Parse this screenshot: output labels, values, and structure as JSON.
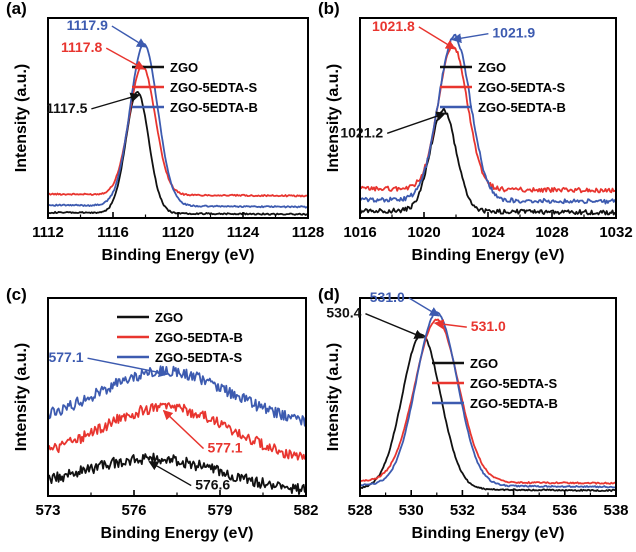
{
  "colors": {
    "ZGO": "#111111",
    "S": "#e8352f",
    "B": "#3d5bb0"
  },
  "chart_data": [
    {
      "type": "line",
      "panel_label": "(a)",
      "xlabel": "Binding Energy (eV)",
      "ylabel": "Intensity (a.u.)",
      "xlim": [
        1112,
        1128
      ],
      "ylim": [
        0,
        1
      ],
      "xticks": [
        "1112",
        "1116",
        "1120",
        "1124",
        "1128"
      ],
      "legend": [
        "ZGO",
        "ZGO-5EDTA-S",
        "ZGO-5EDTA-B"
      ],
      "legend_position": "center-right",
      "series": [
        {
          "name": "ZGO",
          "color_key": "ZGO",
          "peak_x": 1117.5,
          "peak_y": 0.68,
          "baseline": 0.02,
          "width": 0.7,
          "noise": 0.004
        },
        {
          "name": "ZGO-5EDTA-S",
          "color_key": "S",
          "peak_x": 1117.8,
          "peak_y": 0.82,
          "baseline": 0.12,
          "width": 0.8,
          "noise": 0.004
        },
        {
          "name": "ZGO-5EDTA-B",
          "color_key": "B",
          "peak_x": 1117.9,
          "peak_y": 0.94,
          "baseline": 0.06,
          "width": 0.85,
          "noise": 0.004
        }
      ],
      "annotations": [
        {
          "text": "1117.9",
          "color_key": "B",
          "x": 1117.9,
          "y": 0.94
        },
        {
          "text": "1117.8",
          "color_key": "S",
          "x": 1117.8,
          "y": 0.82
        },
        {
          "text": "1117.5",
          "color_key": "ZGO",
          "x": 1117.5,
          "y": 0.68
        }
      ]
    },
    {
      "type": "line",
      "panel_label": "(b)",
      "xlabel": "Binding Energy (eV)",
      "ylabel": "Intensity (a.u.)",
      "xlim": [
        1016,
        1032
      ],
      "ylim": [
        0,
        1
      ],
      "xticks": [
        "1016",
        "1020",
        "1024",
        "1028",
        "1032"
      ],
      "legend": [
        "ZGO",
        "ZGO-5EDTA-S",
        "ZGO-5EDTA-B"
      ],
      "legend_position": "center-right",
      "series": [
        {
          "name": "ZGO",
          "color_key": "ZGO",
          "peak_x": 1021.2,
          "peak_y": 0.58,
          "baseline": 0.03,
          "width": 0.8,
          "noise": 0.012
        },
        {
          "name": "ZGO-5EDTA-S",
          "color_key": "S",
          "peak_x": 1021.8,
          "peak_y": 0.93,
          "baseline": 0.15,
          "width": 0.9,
          "noise": 0.012
        },
        {
          "name": "ZGO-5EDTA-B",
          "color_key": "B",
          "peak_x": 1021.9,
          "peak_y": 0.98,
          "baseline": 0.09,
          "width": 1.0,
          "noise": 0.012
        }
      ],
      "annotations": [
        {
          "text": "1021.9",
          "color_key": "B",
          "x": 1021.9,
          "y": 0.98
        },
        {
          "text": "1021.8",
          "color_key": "S",
          "x": 1021.8,
          "y": 0.93
        },
        {
          "text": "1021.2",
          "color_key": "ZGO",
          "x": 1021.2,
          "y": 0.58
        }
      ]
    },
    {
      "type": "line",
      "panel_label": "(c)",
      "xlabel": "Binding Energy (eV)",
      "ylabel": "Intensity (a.u.)",
      "xlim": [
        573,
        582
      ],
      "ylim": [
        0,
        1
      ],
      "xticks": [
        "573",
        "576",
        "579",
        "582"
      ],
      "legend": [
        "ZGO",
        "ZGO-5EDTA-B",
        "ZGO-5EDTA-S"
      ],
      "legend_position": "top-right",
      "series": [
        {
          "name": "ZGO",
          "color_key": "ZGO",
          "peak_x": 576.6,
          "peak_y": 0.2,
          "baseline": 0.02,
          "width": 2.4,
          "noise": 0.03
        },
        {
          "name": "ZGO-5EDTA-B",
          "color_key": "S",
          "peak_x": 577.1,
          "peak_y": 0.48,
          "baseline": 0.18,
          "width": 2.3,
          "noise": 0.03
        },
        {
          "name": "ZGO-5EDTA-S",
          "color_key": "B",
          "peak_x": 577.1,
          "peak_y": 0.68,
          "baseline": 0.38,
          "width": 2.3,
          "noise": 0.03
        }
      ],
      "annotations": [
        {
          "text": "577.1",
          "color_key": "B",
          "x": 577.1,
          "y": 0.68
        },
        {
          "text": "577.1",
          "color_key": "S",
          "x": 577.1,
          "y": 0.48
        },
        {
          "text": "576.6",
          "color_key": "ZGO",
          "x": 576.6,
          "y": 0.2
        }
      ]
    },
    {
      "type": "line",
      "panel_label": "(d)",
      "xlabel": "Binding Energy (eV)",
      "ylabel": "Intensity (a.u.)",
      "xlim": [
        528,
        538
      ],
      "ylim": [
        0,
        1
      ],
      "xticks": [
        "528",
        "530",
        "532",
        "534",
        "536",
        "538"
      ],
      "legend": [
        "ZGO",
        "ZGO-5EDTA-S",
        "ZGO-5EDTA-B"
      ],
      "legend_position": "center-right",
      "series": [
        {
          "name": "ZGO",
          "color_key": "ZGO",
          "peak_x": 530.4,
          "peak_y": 0.88,
          "baseline": 0.03,
          "width": 0.75,
          "noise": 0.004
        },
        {
          "name": "ZGO-5EDTA-S",
          "color_key": "S",
          "peak_x": 531.0,
          "peak_y": 0.96,
          "baseline": 0.07,
          "width": 0.85,
          "noise": 0.004
        },
        {
          "name": "ZGO-5EDTA-B",
          "color_key": "B",
          "peak_x": 531.0,
          "peak_y": 1.0,
          "baseline": 0.05,
          "width": 0.8,
          "noise": 0.004
        }
      ],
      "annotations": [
        {
          "text": "531.0",
          "color_key": "B",
          "x": 531.0,
          "y": 1.0
        },
        {
          "text": "531.0",
          "color_key": "S",
          "x": 531.0,
          "y": 0.96
        },
        {
          "text": "530.4",
          "color_key": "ZGO",
          "x": 530.4,
          "y": 0.88
        }
      ]
    }
  ]
}
